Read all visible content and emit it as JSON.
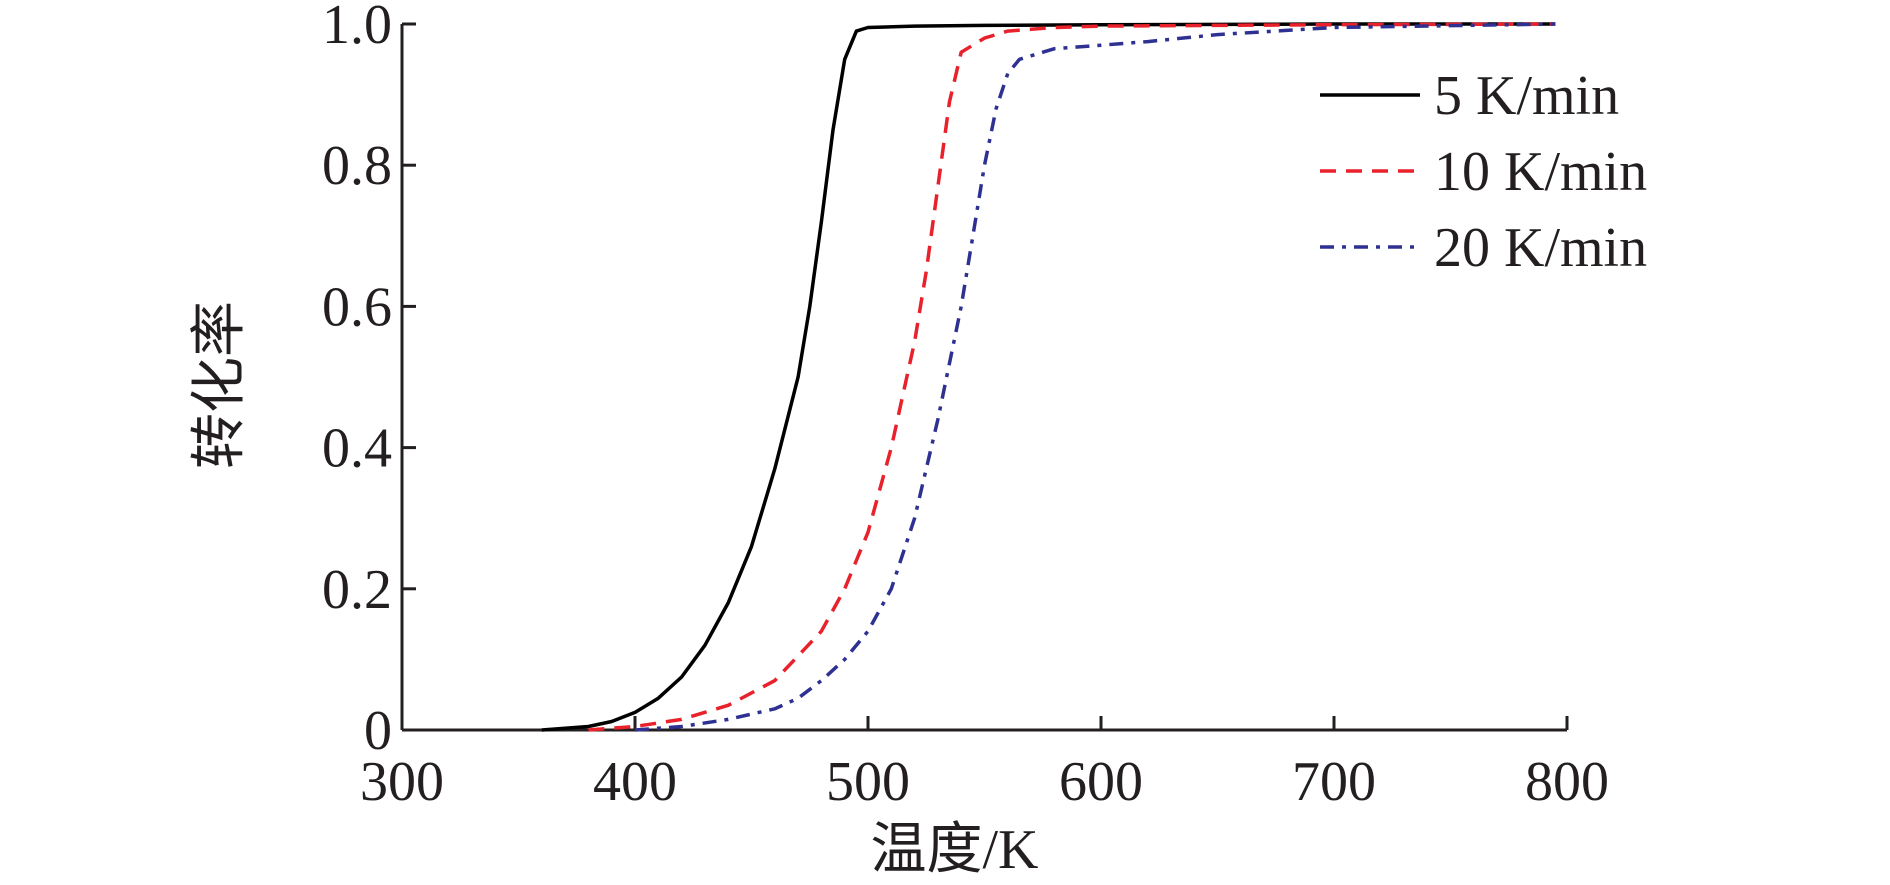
{
  "chart_data": {
    "type": "line",
    "title": "",
    "xlabel": "温度/K",
    "ylabel": "转化率",
    "xlim": [
      300,
      800
    ],
    "ylim": [
      0,
      1.0
    ],
    "xticks": [
      300,
      400,
      500,
      600,
      700,
      800
    ],
    "xtick_labels": [
      "300",
      "400",
      "500",
      "600",
      "700",
      "800"
    ],
    "yticks": [
      0,
      0.2,
      0.4,
      0.6,
      0.8,
      1.0
    ],
    "ytick_labels": [
      "0",
      "0.2",
      "0.4",
      "0.6",
      "0.8",
      "1.0"
    ],
    "grid": false,
    "legend_position": "top-right",
    "series": [
      {
        "name": "5 K/min",
        "color": "#000000",
        "dash": "solid",
        "x": [
          360,
          380,
          390,
          400,
          410,
          420,
          430,
          440,
          450,
          460,
          470,
          475,
          480,
          485,
          490,
          495,
          500,
          520,
          550,
          600,
          700,
          795
        ],
        "y": [
          0,
          0.005,
          0.012,
          0.025,
          0.045,
          0.075,
          0.12,
          0.18,
          0.26,
          0.37,
          0.5,
          0.6,
          0.72,
          0.85,
          0.95,
          0.99,
          0.995,
          0.997,
          0.998,
          0.999,
          1.0,
          1.0
        ]
      },
      {
        "name": "10 K/min",
        "color": "#e8212b",
        "dash": "dashed",
        "x": [
          380,
          400,
          420,
          440,
          460,
          480,
          490,
          500,
          510,
          520,
          525,
          530,
          535,
          540,
          550,
          560,
          580,
          600,
          700,
          795
        ],
        "y": [
          0,
          0.005,
          0.015,
          0.035,
          0.07,
          0.14,
          0.2,
          0.28,
          0.4,
          0.55,
          0.65,
          0.77,
          0.89,
          0.96,
          0.98,
          0.99,
          0.995,
          0.997,
          0.999,
          1.0
        ]
      },
      {
        "name": "20 K/min",
        "color": "#2e3192",
        "dash": "dashdot",
        "x": [
          400,
          420,
          440,
          460,
          470,
          480,
          490,
          500,
          510,
          520,
          530,
          540,
          545,
          550,
          555,
          560,
          565,
          580,
          600,
          620,
          650,
          700,
          795
        ],
        "y": [
          0,
          0.005,
          0.015,
          0.03,
          0.045,
          0.07,
          0.1,
          0.14,
          0.2,
          0.3,
          0.44,
          0.6,
          0.7,
          0.8,
          0.88,
          0.93,
          0.95,
          0.965,
          0.97,
          0.975,
          0.985,
          0.995,
          1.0
        ]
      }
    ]
  }
}
